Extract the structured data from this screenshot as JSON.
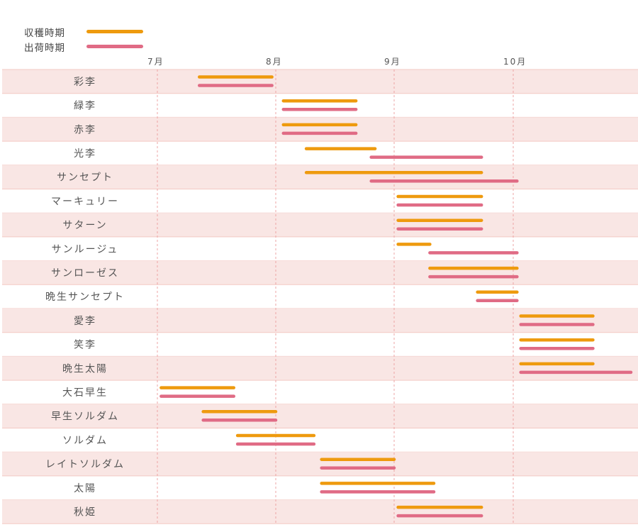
{
  "legend": {
    "harvest_label": "収穫時期",
    "shipping_label": "出荷時期"
  },
  "colors": {
    "harvest": "#EE9A0E",
    "shipping": "#E06B85",
    "row_band": "#F9E6E4",
    "row_border": "#F3C9C3",
    "month_line": "#EDA4A4"
  },
  "chart_data": {
    "type": "gantt",
    "months": [
      "7月",
      "8月",
      "9月",
      "10月"
    ],
    "xlim": [
      "7/1",
      "10/31"
    ],
    "series": [
      {
        "name": "収穫時期",
        "key": "harvest"
      },
      {
        "name": "出荷時期",
        "key": "shipping"
      }
    ],
    "varieties": [
      {
        "name": "彩李",
        "harvest": [
          "7/12",
          "7/30"
        ],
        "shipping": [
          "7/12",
          "7/30"
        ]
      },
      {
        "name": "緑李",
        "harvest": [
          "8/3",
          "8/21"
        ],
        "shipping": [
          "8/3",
          "8/21"
        ]
      },
      {
        "name": "赤李",
        "harvest": [
          "8/3",
          "8/21"
        ],
        "shipping": [
          "8/3",
          "8/21"
        ]
      },
      {
        "name": "光李",
        "harvest": [
          "8/9",
          "8/26"
        ],
        "shipping": [
          "8/26",
          "9/22"
        ]
      },
      {
        "name": "サンセプト",
        "harvest": [
          "8/9",
          "9/22"
        ],
        "shipping": [
          "8/26",
          "10/1"
        ]
      },
      {
        "name": "マーキュリー",
        "harvest": [
          "9/2",
          "9/22"
        ],
        "shipping": [
          "9/2",
          "9/22"
        ]
      },
      {
        "name": "サターン",
        "harvest": [
          "9/2",
          "9/22"
        ],
        "shipping": [
          "9/2",
          "9/22"
        ]
      },
      {
        "name": "サンルージュ",
        "harvest": [
          "9/2",
          "9/9"
        ],
        "shipping": [
          "9/10",
          "10/1"
        ]
      },
      {
        "name": "サンローゼス",
        "harvest": [
          "9/10",
          "10/1"
        ],
        "shipping": [
          "9/10",
          "10/1"
        ]
      },
      {
        "name": "晩生サンセプト",
        "harvest": [
          "9/22",
          "10/1"
        ],
        "shipping": [
          "9/22",
          "10/1"
        ]
      },
      {
        "name": "愛李",
        "harvest": [
          "10/3",
          "10/21"
        ],
        "shipping": [
          "10/3",
          "10/21"
        ]
      },
      {
        "name": "笑李",
        "harvest": [
          "10/3",
          "10/21"
        ],
        "shipping": [
          "10/3",
          "10/21"
        ]
      },
      {
        "name": "晩生太陽",
        "harvest": [
          "10/3",
          "10/21"
        ],
        "shipping": [
          "10/3",
          "10/31"
        ]
      },
      {
        "name": "大石早生",
        "harvest": [
          "7/2",
          "7/20"
        ],
        "shipping": [
          "7/2",
          "7/20"
        ]
      },
      {
        "name": "早生ソルダム",
        "harvest": [
          "7/13",
          "7/31"
        ],
        "shipping": [
          "7/13",
          "7/31"
        ]
      },
      {
        "name": "ソルダム",
        "harvest": [
          "7/22",
          "8/10"
        ],
        "shipping": [
          "7/22",
          "8/10"
        ]
      },
      {
        "name": "レイトソルダム",
        "harvest": [
          "8/13",
          "8/31"
        ],
        "shipping": [
          "8/13",
          "8/31"
        ]
      },
      {
        "name": "太陽",
        "harvest": [
          "8/13",
          "9/10"
        ],
        "shipping": [
          "8/13",
          "9/10"
        ]
      },
      {
        "name": "秋姫",
        "harvest": [
          "9/2",
          "9/22"
        ],
        "shipping": [
          "9/2",
          "9/22"
        ]
      }
    ]
  }
}
